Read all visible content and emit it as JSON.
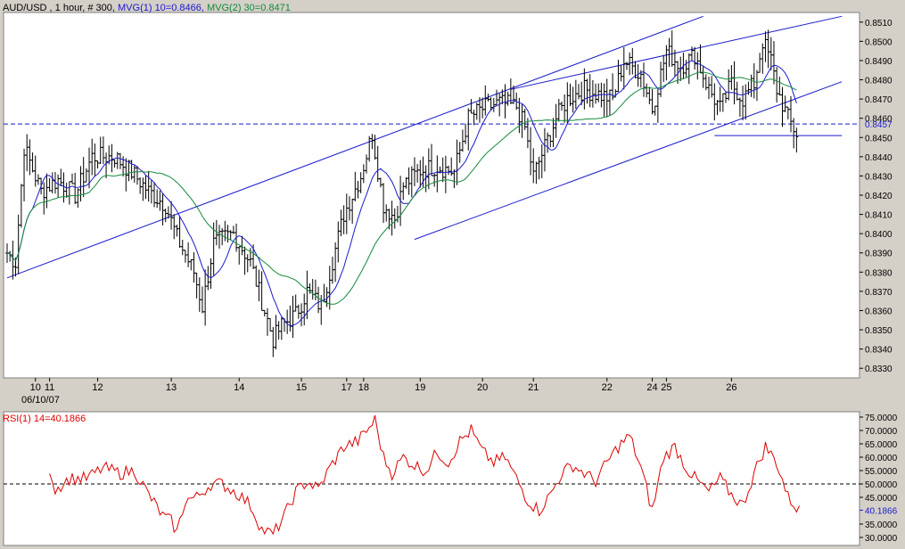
{
  "price_panel": {
    "header": [
      {
        "text": "AUD/USD , 1 hour, # 300,",
        "color": "#000000"
      },
      {
        "text": "MVG(1) 10=0.8466,",
        "color": "#1a1acc"
      },
      {
        "text": "MVG(2) 30=0.8471",
        "color": "#138a3c"
      }
    ]
  },
  "rsi_panel": {
    "header": {
      "text": "RSI(1) 14=40.1866",
      "color": "#dd0000"
    }
  },
  "chart_data": [
    {
      "type": "ohlc",
      "title": "AUD/USD , 1 hour, # 300",
      "bars": 300,
      "ylim": [
        0.8325,
        0.8515
      ],
      "y_ticks": [
        "0.8330",
        "0.8340",
        "0.8350",
        "0.8360",
        "0.8370",
        "0.8380",
        "0.8390",
        "0.8400",
        "0.8410",
        "0.8420",
        "0.8430",
        "0.8440",
        "0.8450",
        "0.8460",
        "0.8470",
        "0.8480",
        "0.8490",
        "0.8500",
        "0.8510"
      ],
      "x_ticks": [
        {
          "label": "10",
          "bar": 10
        },
        {
          "label": "11",
          "bar": 15
        },
        {
          "label": "12",
          "bar": 32
        },
        {
          "label": "13",
          "bar": 58
        },
        {
          "label": "14",
          "bar": 82
        },
        {
          "label": "15",
          "bar": 104
        },
        {
          "label": "17",
          "bar": 120
        },
        {
          "label": "18",
          "bar": 126
        },
        {
          "label": "19",
          "bar": 146
        },
        {
          "label": "20",
          "bar": 168
        },
        {
          "label": "21",
          "bar": 186
        },
        {
          "label": "22",
          "bar": 212
        },
        {
          "label": "24",
          "bar": 228
        },
        {
          "label": "25",
          "bar": 233
        },
        {
          "label": "26",
          "bar": 256
        }
      ],
      "date_label": "06/10/07",
      "price_path": [
        [
          0,
          0.839
        ],
        [
          3,
          0.8385
        ],
        [
          6,
          0.8445
        ],
        [
          12,
          0.8422
        ],
        [
          18,
          0.8428
        ],
        [
          24,
          0.842
        ],
        [
          30,
          0.844
        ],
        [
          38,
          0.844
        ],
        [
          44,
          0.8432
        ],
        [
          50,
          0.8422
        ],
        [
          56,
          0.8415
        ],
        [
          60,
          0.8398
        ],
        [
          66,
          0.838
        ],
        [
          69,
          0.8362
        ],
        [
          73,
          0.8395
        ],
        [
          80,
          0.84
        ],
        [
          86,
          0.8385
        ],
        [
          91,
          0.836
        ],
        [
          94,
          0.8345
        ],
        [
          97,
          0.8352
        ],
        [
          102,
          0.8358
        ],
        [
          106,
          0.837
        ],
        [
          111,
          0.8362
        ],
        [
          114,
          0.838
        ],
        [
          119,
          0.841
        ],
        [
          125,
          0.843
        ],
        [
          129,
          0.8452
        ],
        [
          133,
          0.8415
        ],
        [
          137,
          0.8408
        ],
        [
          140,
          0.8425
        ],
        [
          146,
          0.8433
        ],
        [
          152,
          0.8435
        ],
        [
          158,
          0.8432
        ],
        [
          163,
          0.846
        ],
        [
          168,
          0.8465
        ],
        [
          174,
          0.8468
        ],
        [
          180,
          0.8466
        ],
        [
          183,
          0.8455
        ],
        [
          186,
          0.843
        ],
        [
          190,
          0.8445
        ],
        [
          194,
          0.846
        ],
        [
          198,
          0.847
        ],
        [
          204,
          0.8475
        ],
        [
          210,
          0.8472
        ],
        [
          214,
          0.847
        ],
        [
          218,
          0.849
        ],
        [
          224,
          0.8483
        ],
        [
          228,
          0.8465
        ],
        [
          233,
          0.8495
        ],
        [
          238,
          0.8487
        ],
        [
          243,
          0.8493
        ],
        [
          248,
          0.8475
        ],
        [
          252,
          0.8465
        ],
        [
          256,
          0.8478
        ],
        [
          260,
          0.847
        ],
        [
          264,
          0.8478
        ],
        [
          267,
          0.85
        ],
        [
          270,
          0.849
        ],
        [
          272,
          0.8475
        ],
        [
          276,
          0.846
        ],
        [
          279,
          0.8452
        ]
      ],
      "series": [
        {
          "name": "MVG(1) 10",
          "value": 0.8466,
          "color": "#1a1acc",
          "period": 10
        },
        {
          "name": "MVG(2) 30",
          "value": 0.8471,
          "color": "#138a3c",
          "period": 30
        }
      ],
      "last_price": 0.8457,
      "trendlines": [
        {
          "from": [
            0,
            0.8377
          ],
          "to": [
            246,
            0.8513
          ]
        },
        {
          "from": [
            144,
            0.8397
          ],
          "to": [
            295,
            0.8479
          ]
        },
        {
          "from": [
            178,
            0.8475
          ],
          "to": [
            295,
            0.8513
          ]
        },
        {
          "from": [
            250,
            0.8451
          ],
          "to": [
            295,
            0.8451
          ]
        }
      ],
      "grid": false
    },
    {
      "type": "line",
      "title": "RSI(1) 14=40.1866",
      "series": [
        {
          "name": "RSI(1) 14",
          "value": 40.1866,
          "color": "#dd0000"
        }
      ],
      "ylim": [
        27,
        77
      ],
      "y_ticks": [
        "30.0000",
        "35.0000",
        "40.1866",
        "45.0000",
        "50.0000",
        "55.0000",
        "60.0000",
        "65.0000",
        "70.0000",
        "75.0000"
      ],
      "current_value_label": "40.1866",
      "reference_line": 50,
      "rsi_path": [
        [
          15,
          56
        ],
        [
          17,
          48
        ],
        [
          22,
          52
        ],
        [
          28,
          52
        ],
        [
          34,
          56
        ],
        [
          40,
          54
        ],
        [
          45,
          55
        ],
        [
          50,
          46
        ],
        [
          55,
          38
        ],
        [
          58,
          36
        ],
        [
          60,
          32
        ],
        [
          63,
          44
        ],
        [
          67,
          45
        ],
        [
          72,
          50
        ],
        [
          76,
          50
        ],
        [
          82,
          46
        ],
        [
          86,
          42
        ],
        [
          90,
          33
        ],
        [
          94,
          31
        ],
        [
          98,
          38
        ],
        [
          102,
          47
        ],
        [
          106,
          51
        ],
        [
          110,
          48
        ],
        [
          114,
          56
        ],
        [
          119,
          64
        ],
        [
          124,
          66
        ],
        [
          128,
          71
        ],
        [
          130,
          74
        ],
        [
          133,
          60
        ],
        [
          136,
          54
        ],
        [
          140,
          60
        ],
        [
          144,
          57
        ],
        [
          148,
          55
        ],
        [
          152,
          62
        ],
        [
          156,
          58
        ],
        [
          160,
          66
        ],
        [
          164,
          70
        ],
        [
          168,
          62
        ],
        [
          172,
          58
        ],
        [
          176,
          60
        ],
        [
          180,
          52
        ],
        [
          184,
          44
        ],
        [
          188,
          40
        ],
        [
          192,
          46
        ],
        [
          196,
          54
        ],
        [
          200,
          57
        ],
        [
          204,
          54
        ],
        [
          208,
          51
        ],
        [
          212,
          58
        ],
        [
          216,
          64
        ],
        [
          220,
          68
        ],
        [
          224,
          56
        ],
        [
          228,
          40
        ],
        [
          232,
          60
        ],
        [
          236,
          64
        ],
        [
          240,
          56
        ],
        [
          244,
          51
        ],
        [
          248,
          47
        ],
        [
          252,
          52
        ],
        [
          256,
          46
        ],
        [
          260,
          42
        ],
        [
          264,
          54
        ],
        [
          268,
          64
        ],
        [
          272,
          58
        ],
        [
          276,
          45
        ],
        [
          280,
          40
        ]
      ]
    }
  ]
}
